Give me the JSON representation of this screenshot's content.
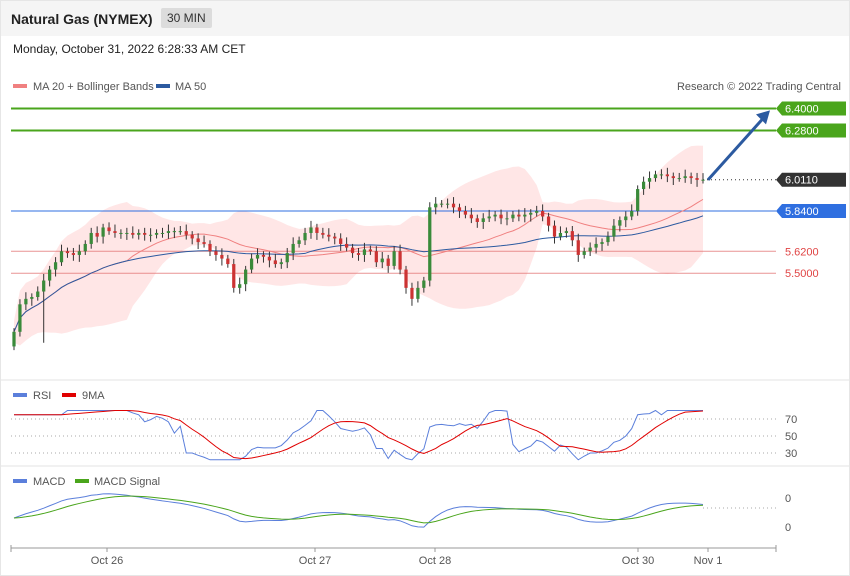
{
  "header": {
    "title": "Natural Gas (NYMEX)",
    "timeframe": "30 MIN",
    "datetime": "Monday, October 31, 2022 6:28:33 AM CET"
  },
  "main_legend": {
    "ma20_label": "MA 20 + Bollinger Bands",
    "ma50_label": "MA 50",
    "credit": "Research © 2022 Trading Central",
    "ma20_color": "#f08080",
    "ma50_color": "#2c5aa0"
  },
  "rsi_legend": {
    "rsi_label": "RSI",
    "ma_label": "9MA",
    "rsi_color": "#5b7fdb",
    "ma_color": "#e00000"
  },
  "macd_legend": {
    "macd_label": "MACD",
    "signal_label": "MACD Signal",
    "macd_color": "#5b7fdb",
    "signal_color": "#4aa51c"
  },
  "chart_data": [
    {
      "type": "candlestick",
      "price_levels": [
        {
          "value": 6.4,
          "label": "6.4000",
          "kind": "resistance",
          "color": "#4aa51c"
        },
        {
          "value": 6.28,
          "label": "6.2800",
          "kind": "resistance",
          "color": "#4aa51c"
        },
        {
          "value": 6.011,
          "label": "6.0110",
          "kind": "last",
          "color": "#333333"
        },
        {
          "value": 5.84,
          "label": "5.8400",
          "kind": "pivot",
          "color": "#2f6fe0"
        },
        {
          "value": 5.62,
          "label": "5.6200",
          "kind": "support",
          "color": "#e06666"
        },
        {
          "value": 5.5,
          "label": "5.5000",
          "kind": "support",
          "color": "#e06666"
        }
      ],
      "x_ticks": [
        "Oct 26",
        "Oct 27",
        "Oct 28",
        "Oct 30",
        "Nov 1"
      ],
      "closes": [
        5.18,
        5.33,
        5.36,
        5.37,
        5.4,
        5.46,
        5.52,
        5.56,
        5.62,
        5.61,
        5.6,
        5.62,
        5.66,
        5.72,
        5.7,
        5.75,
        5.73,
        5.72,
        5.72,
        5.72,
        5.71,
        5.72,
        5.71,
        5.71,
        5.72,
        5.72,
        5.73,
        5.73,
        5.73,
        5.71,
        5.69,
        5.67,
        5.66,
        5.62,
        5.6,
        5.58,
        5.55,
        5.42,
        5.44,
        5.52,
        5.58,
        5.6,
        5.59,
        5.57,
        5.55,
        5.56,
        5.61,
        5.66,
        5.68,
        5.72,
        5.75,
        5.72,
        5.71,
        5.7,
        5.69,
        5.66,
        5.64,
        5.61,
        5.6,
        5.63,
        5.62,
        5.56,
        5.58,
        5.54,
        5.62,
        5.52,
        5.42,
        5.36,
        5.42,
        5.46,
        5.86,
        5.88,
        5.88,
        5.88,
        5.86,
        5.84,
        5.82,
        5.8,
        5.78,
        5.8,
        5.81,
        5.82,
        5.8,
        5.8,
        5.82,
        5.81,
        5.82,
        5.83,
        5.84,
        5.81,
        5.76,
        5.7,
        5.72,
        5.73,
        5.68,
        5.6,
        5.62,
        5.64,
        5.66,
        5.67,
        5.7,
        5.76,
        5.79,
        5.81,
        5.84,
        5.96,
        6.0,
        6.02,
        6.04,
        6.04,
        6.03,
        6.02,
        6.02,
        6.03,
        6.02,
        6.01,
        6.011
      ]
    },
    {
      "type": "line",
      "name_rsi": "RSI",
      "name_ma": "9MA",
      "y_ticks": [
        70,
        50,
        30
      ]
    },
    {
      "type": "line",
      "name_macd": "MACD",
      "name_signal": "MACD Signal",
      "y_ticks": [
        0,
        0
      ]
    }
  ]
}
